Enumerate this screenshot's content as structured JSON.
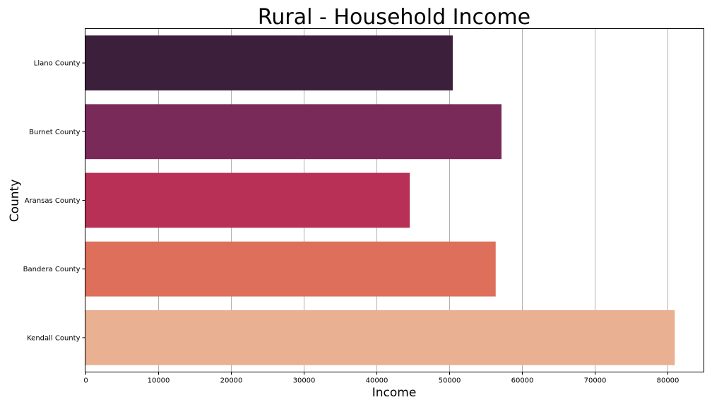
{
  "chart_data": {
    "type": "bar",
    "orientation": "horizontal",
    "title": "Rural - Household Income",
    "xlabel": "Income",
    "ylabel": "County",
    "categories": [
      "Llano County",
      "Burnet County",
      "Aransas County",
      "Bandera County",
      "Kendall County"
    ],
    "values": [
      50500,
      57200,
      44600,
      56400,
      81000
    ],
    "colors": [
      "#3b1f3b",
      "#7a2a58",
      "#b83056",
      "#dd6f5b",
      "#eab092"
    ],
    "xlim": [
      0,
      85000
    ],
    "xticks": [
      0,
      10000,
      20000,
      30000,
      40000,
      50000,
      60000,
      70000,
      80000
    ],
    "grid": "vertical",
    "grid_color": "#b0b0b0"
  }
}
